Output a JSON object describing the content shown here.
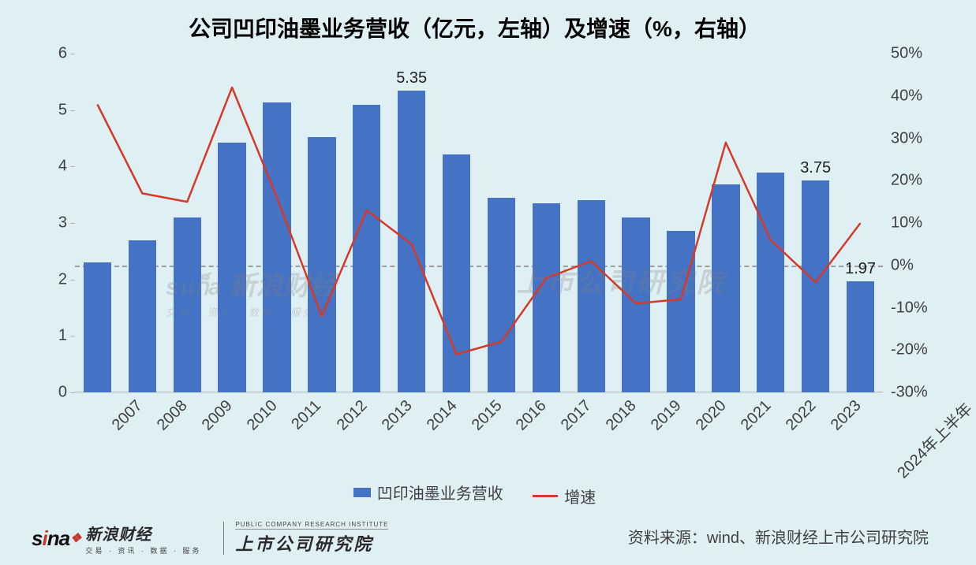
{
  "title": "公司凹印油墨业务营收（亿元，左轴）及增速（%，右轴）",
  "chart": {
    "type": "bar+line",
    "background_color": "#dff0f4",
    "bar_color": "#4472c4",
    "line_color": "#d6392a",
    "line_width": 2.5,
    "bar_width_ratio": 0.62,
    "categories": [
      "2007",
      "2008",
      "2009",
      "2010",
      "2011",
      "2012",
      "2013",
      "2014",
      "2015",
      "2016",
      "2017",
      "2018",
      "2019",
      "2020",
      "2021",
      "2022",
      "2023",
      "2024年上半年"
    ],
    "bar_values": [
      2.3,
      2.7,
      3.1,
      4.42,
      5.14,
      4.52,
      5.1,
      5.35,
      4.22,
      3.44,
      3.35,
      3.4,
      3.1,
      2.86,
      3.68,
      3.9,
      3.75,
      1.97
    ],
    "line_values": [
      38,
      17,
      15,
      42,
      16,
      -12,
      13,
      5,
      -21,
      -18,
      -3,
      1,
      -9,
      -8,
      29,
      6,
      -4,
      10
    ],
    "data_labels": [
      {
        "index": 7,
        "text": "5.35"
      },
      {
        "index": 16,
        "text": "3.75"
      },
      {
        "index": 17,
        "text": "1.97"
      }
    ],
    "left_axis": {
      "min": 0,
      "max": 6,
      "ticks": [
        0,
        1,
        2,
        3,
        4,
        5,
        6
      ]
    },
    "right_axis": {
      "min": -30,
      "max": 50,
      "ticks": [
        -30,
        -20,
        -10,
        0,
        10,
        20,
        30,
        40,
        50
      ],
      "suffix": "%"
    },
    "axis_font_size": 20,
    "axis_color": "#404040",
    "xlabel_rotation": -45,
    "zero_line_color": "#9e9e9e",
    "zero_line_dash": "dashed"
  },
  "legend": {
    "bar_label": "凹印油墨业务营收",
    "line_label": "增速"
  },
  "watermarks": {
    "left": "sina 新浪财经",
    "left_sub": "交易 · 资讯 · 数据 · 服务",
    "right": "上市公司研究院"
  },
  "footer": {
    "source": "资料来源：wind、新浪财经上市公司研究院",
    "sina_text": "新浪财经",
    "sina_sub": "交易 · 资讯 · 数据 · 服务",
    "inst_en": "PUBLIC COMPANY RESEARCH INSTITUTE",
    "inst_cn": "上市公司研究院"
  }
}
